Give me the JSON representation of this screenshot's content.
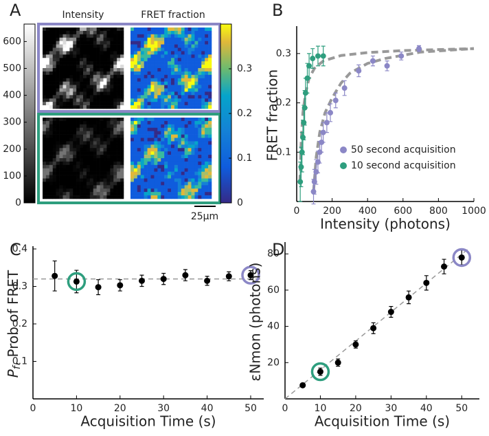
{
  "chart_data": [
    {
      "type": "image",
      "label": "A",
      "titles": [
        "Intensity",
        "FRET fraction"
      ],
      "frame_colors": [
        "#8b87c6",
        "#2e9e7e"
      ],
      "colorbars": [
        {
          "colormap": "gray",
          "ylim": [
            0,
            665
          ],
          "yticks": [
            0,
            100,
            200,
            300,
            400,
            500,
            600
          ]
        },
        {
          "colormap": "parula",
          "ylim": [
            0,
            0.4
          ],
          "yticks": [
            0,
            0.1,
            0.2,
            0.3
          ]
        }
      ],
      "scale_bar": "25µm"
    },
    {
      "type": "scatter",
      "label": "B",
      "xlabel": "Intensity (photons)",
      "ylabel": "FRET fraction",
      "xlim": [
        0,
        1000
      ],
      "ylim": [
        0,
        0.35
      ],
      "xticks": [
        0,
        200,
        400,
        600,
        800,
        1000
      ],
      "yticks": [
        0.1,
        0.2,
        0.3
      ],
      "legend": "lower right",
      "series": [
        {
          "name": "50 second acquisition",
          "color": "#8b87c6",
          "x": [
            690,
            590,
            510,
            430,
            350,
            270,
            220,
            190,
            170,
            150,
            140,
            130,
            120,
            110,
            100,
            95
          ],
          "values": [
            0.31,
            0.295,
            0.275,
            0.285,
            0.265,
            0.23,
            0.205,
            0.18,
            0.16,
            0.14,
            0.12,
            0.1,
            0.08,
            0.06,
            0.04,
            0.02
          ],
          "errors": [
            0.006,
            0.008,
            0.01,
            0.01,
            0.012,
            0.015,
            0.015,
            0.018,
            0.02,
            0.02,
            0.02,
            0.022,
            0.022,
            0.025,
            0.025,
            0.025
          ]
        },
        {
          "name": "10 second acquisition",
          "color": "#2e9e7e",
          "x": [
            150,
            120,
            90,
            70,
            60,
            50,
            45,
            40,
            35,
            30,
            25,
            20
          ],
          "values": [
            0.295,
            0.295,
            0.29,
            0.275,
            0.25,
            0.22,
            0.19,
            0.16,
            0.13,
            0.1,
            0.07,
            0.04
          ],
          "errors": [
            0.02,
            0.02,
            0.02,
            0.025,
            0.03,
            0.03,
            0.035,
            0.035,
            0.035,
            0.04,
            0.04,
            0.04
          ]
        }
      ],
      "fits": [
        {
          "color": "#999999",
          "x": [
            95,
            110,
            130,
            160,
            200,
            250,
            300,
            400,
            500,
            700,
            1000
          ],
          "values": [
            0.02,
            0.09,
            0.14,
            0.18,
            0.21,
            0.24,
            0.26,
            0.28,
            0.29,
            0.303,
            0.31
          ]
        },
        {
          "color": "#999999",
          "x": [
            18,
            25,
            35,
            50,
            70,
            100,
            150,
            250,
            400,
            600,
            1000
          ],
          "values": [
            0.04,
            0.12,
            0.18,
            0.22,
            0.25,
            0.27,
            0.285,
            0.296,
            0.302,
            0.306,
            0.31
          ]
        }
      ]
    },
    {
      "type": "errorbar",
      "label": "C",
      "xlabel": "Acquisition Time (s)",
      "ylabel": {
        "symbol": "P",
        "subscript": "f",
        "text": ", Prob of FRET"
      },
      "xlim": [
        0,
        53
      ],
      "ylim": [
        0,
        0.4
      ],
      "xticks": [
        0,
        10,
        20,
        30,
        40,
        50
      ],
      "yticks": [
        0.1,
        0.2,
        0.3,
        0.4
      ],
      "series": [
        {
          "color": "#000000",
          "x": [
            5,
            10,
            15,
            20,
            25,
            30,
            35,
            40,
            45,
            50
          ],
          "values": [
            0.328,
            0.313,
            0.298,
            0.303,
            0.315,
            0.32,
            0.33,
            0.315,
            0.327,
            0.33
          ],
          "errors": [
            0.04,
            0.03,
            0.02,
            0.015,
            0.015,
            0.015,
            0.015,
            0.012,
            0.012,
            0.012
          ]
        }
      ],
      "fits": [
        {
          "color": "#999999",
          "x": [
            0,
            53
          ],
          "values": [
            0.32,
            0.32
          ]
        }
      ],
      "highlights": [
        {
          "x": 10,
          "color": "#2e9e7e"
        },
        {
          "x": 50,
          "color": "#8b87c6"
        }
      ]
    },
    {
      "type": "errorbar",
      "label": "D",
      "xlabel": "Acquisition Time (s)",
      "ylabel": "εNmon (photons)",
      "xlim": [
        0,
        55
      ],
      "ylim": [
        0,
        85
      ],
      "xticks": [
        0,
        10,
        20,
        30,
        40,
        50
      ],
      "yticks": [
        20,
        40,
        60,
        80
      ],
      "series": [
        {
          "color": "#000000",
          "x": [
            5,
            10,
            15,
            20,
            25,
            30,
            35,
            40,
            45,
            50
          ],
          "values": [
            7.5,
            15,
            20,
            30,
            39,
            48,
            56,
            64,
            73,
            78
          ],
          "errors": [
            1,
            2,
            2,
            2,
            3,
            3,
            3.5,
            4,
            4,
            4
          ]
        }
      ],
      "fits": [
        {
          "color": "#999999",
          "x": [
            0,
            52
          ],
          "values": [
            0,
            83
          ]
        }
      ],
      "highlights": [
        {
          "x": 10,
          "color": "#2e9e7e"
        },
        {
          "x": 50,
          "color": "#8b87c6"
        }
      ]
    }
  ]
}
